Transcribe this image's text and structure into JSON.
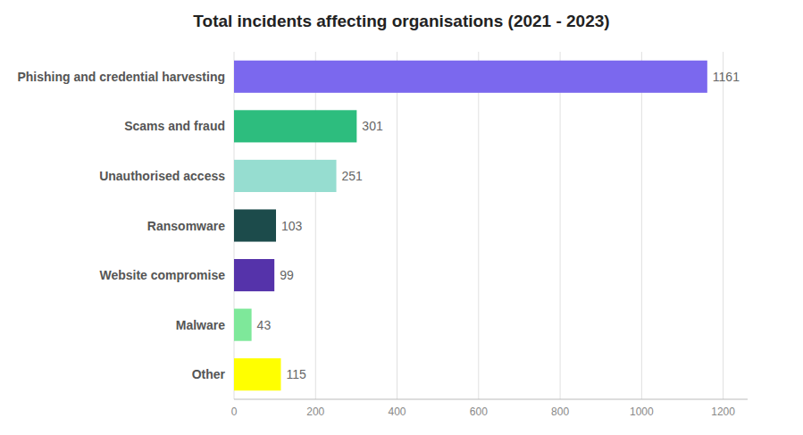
{
  "chart_data": {
    "type": "bar",
    "orientation": "horizontal",
    "title": "Total incidents affecting organisations (2021 - 2023)",
    "categories": [
      "Phishing and credential harvesting",
      "Scams and fraud",
      "Unauthorised access",
      "Ransomware",
      "Website compromise",
      "Malware",
      "Other"
    ],
    "values": [
      1161,
      301,
      251,
      103,
      99,
      43,
      115
    ],
    "colors": [
      "#7B68EE",
      "#2DBD7E",
      "#96DDD0",
      "#1C4B4B",
      "#5533AA",
      "#7EE89A",
      "#FFFF00"
    ],
    "xlim": [
      0,
      1260
    ],
    "xticks": [
      0,
      200,
      400,
      600,
      800,
      1000,
      1200
    ],
    "grid": true,
    "data_labels": true
  }
}
